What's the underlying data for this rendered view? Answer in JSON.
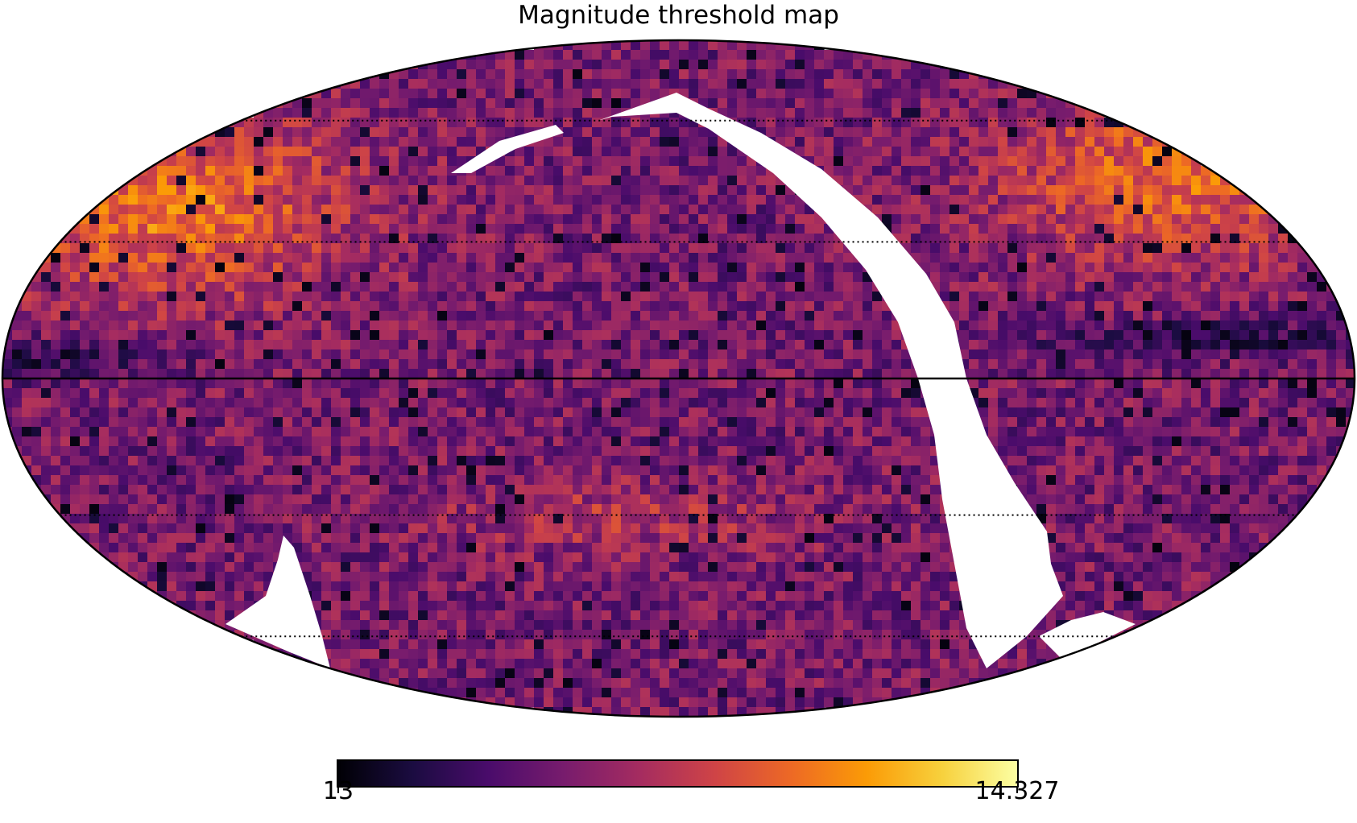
{
  "chart_data": {
    "type": "heatmap",
    "projection": "mollweide",
    "title": "Magnitude threshold map",
    "colormap": "inferno",
    "colorbar": {
      "min": 13,
      "max": 14.327,
      "min_label": "13",
      "max_label": "14.327"
    },
    "graticule": {
      "lines": "dotted",
      "central_meridian_and_equator": "solid"
    },
    "masked_regions": {
      "color": "#ffffff"
    },
    "colors": {
      "outline": "#000000",
      "mask": "#ffffff",
      "inferno": [
        "#000004",
        "#1b0c41",
        "#4a0c6b",
        "#781c6d",
        "#a52c60",
        "#cf4446",
        "#ed6925",
        "#fb9b06",
        "#f7d13d",
        "#fcffa4"
      ]
    }
  }
}
